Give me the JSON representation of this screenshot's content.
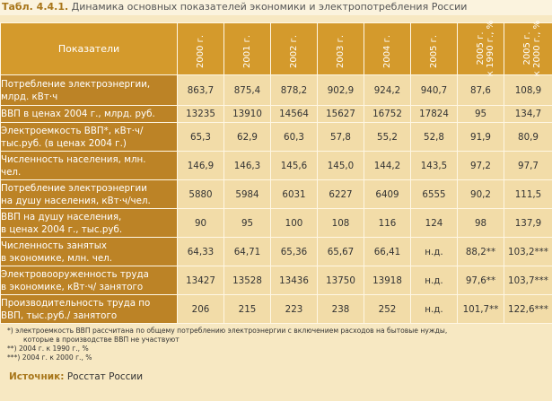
{
  "caption": {
    "number": "Табл. 4.4.1.",
    "title": "Динамика основных показателей экономики и электропотребления России"
  },
  "table": {
    "label_header": "Показатели",
    "columns": [
      "2000 г.",
      "2001 г.",
      "2002 г.",
      "2003 г.",
      "2004 г.",
      "2005 г.",
      "2005 г. к 1990 г., %",
      "2005 г. к 2000 г., %"
    ],
    "rows": [
      {
        "label": [
          "Потребление электроэнергии,",
          "млрд. кВт·ч"
        ],
        "values": [
          "863,7",
          "875,4",
          "878,2",
          "902,9",
          "924,2",
          "940,7",
          "87,6",
          "108,9"
        ]
      },
      {
        "label": [
          "ВВП в ценах 2004 г., млрд. руб."
        ],
        "values": [
          "13235",
          "13910",
          "14564",
          "15627",
          "16752",
          "17824",
          "95",
          "134,7"
        ]
      },
      {
        "label": [
          "Электроемкость ВВП*, кВт·ч/",
          "тыс.руб. (в ценах 2004 г.)"
        ],
        "values": [
          "65,3",
          "62,9",
          "60,3",
          "57,8",
          "55,2",
          "52,8",
          "91,9",
          "80,9"
        ]
      },
      {
        "label": [
          "Численность населения, млн.",
          "чел."
        ],
        "values": [
          "146,9",
          "146,3",
          "145,6",
          "145,0",
          "144,2",
          "143,5",
          "97,2",
          "97,7"
        ]
      },
      {
        "label": [
          "Потребление электроэнергии",
          "на душу населения, кВт·ч/чел."
        ],
        "values": [
          "5880",
          "5984",
          "6031",
          "6227",
          "6409",
          "6555",
          "90,2",
          "111,5"
        ]
      },
      {
        "label": [
          "ВВП на душу населения,",
          "в ценах 2004 г., тыс.руб."
        ],
        "values": [
          "90",
          "95",
          "100",
          "108",
          "116",
          "124",
          "98",
          "137,9"
        ]
      },
      {
        "label": [
          "Численность занятых",
          "в экономике, млн. чел."
        ],
        "values": [
          "64,33",
          "64,71",
          "65,36",
          "65,67",
          "66,41",
          "н.д.",
          "88,2**",
          "103,2***"
        ]
      },
      {
        "label": [
          "Электровооруженность труда",
          "в экономике, кВт·ч/ занятого"
        ],
        "values": [
          "13427",
          "13528",
          "13436",
          "13750",
          "13918",
          "н.д.",
          "97,6**",
          "103,7***"
        ]
      },
      {
        "label": [
          "Производительность труда по",
          "ВВП, тыс.руб./ занятого"
        ],
        "values": [
          "206",
          "215",
          "223",
          "238",
          "252",
          "н.д.",
          "101,7**",
          "122,6***"
        ]
      }
    ]
  },
  "notes": [
    "*) электроемкость ВВП рассчитана по общему потреблению электроэнергии с включением расходов на бытовые нужды,",
    "которые в производстве ВВП не участвуют",
    "**) 2004 г. к 1990 г., %",
    "***) 2004 г. к 2000 г., %"
  ],
  "source": {
    "label": "Источник:",
    "text": "Росстат России"
  }
}
